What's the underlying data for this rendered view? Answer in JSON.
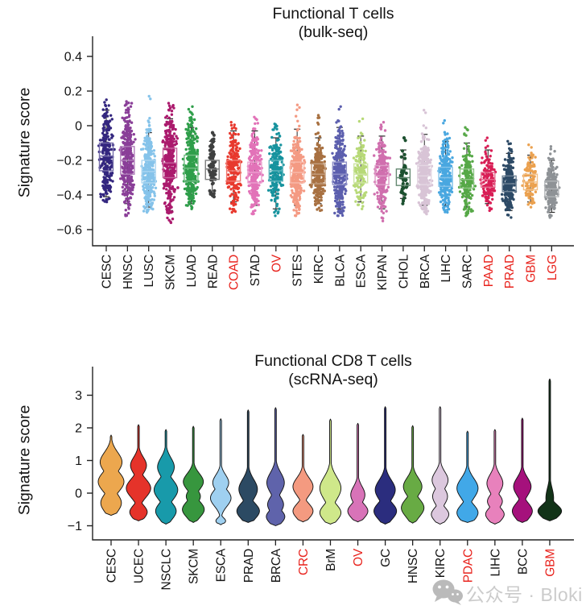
{
  "accents": {
    "highlight_red": "#e8231d",
    "axis_color": "#222222",
    "text_color": "#141414"
  },
  "watermark": {
    "icon": "wechat-icon",
    "text": "公众号 · Bloki",
    "text_color": "#c7c7c7",
    "icon_color": "#b5b5b5"
  },
  "chart_data": [
    {
      "type": "box-strip",
      "title_line1": "Functional T cells",
      "title_line2": "(bulk-seq)",
      "ylabel": "Signature score",
      "yticks": [
        0.4,
        0.2,
        0,
        -0.2,
        -0.4,
        -0.6
      ],
      "ylim": [
        -0.65,
        0.52
      ],
      "legend": "none",
      "categories": [
        {
          "label": "CESC",
          "color": "#33267f",
          "red": false,
          "median": -0.175,
          "q1": -0.26,
          "q3": -0.1,
          "whisker_low": -0.41,
          "whisker_high": 0.09,
          "points_min": -0.44,
          "points_max": 0.15,
          "n": 240
        },
        {
          "label": "HNSC",
          "color": "#8a3f98",
          "red": false,
          "median": -0.2,
          "q1": -0.28,
          "q3": -0.12,
          "whisker_low": -0.45,
          "whisker_high": 0.02,
          "points_min": -0.52,
          "points_max": 0.14,
          "n": 300
        },
        {
          "label": "LUSC",
          "color": "#85c3ea",
          "red": false,
          "median": -0.265,
          "q1": -0.33,
          "q3": -0.2,
          "whisker_low": -0.47,
          "whisker_high": -0.04,
          "points_min": -0.5,
          "points_max": 0.17,
          "n": 300
        },
        {
          "label": "SKCM",
          "color": "#ab1a6d",
          "red": false,
          "median": -0.215,
          "q1": -0.3,
          "q3": -0.13,
          "whisker_low": -0.49,
          "whisker_high": 0.04,
          "points_min": -0.56,
          "points_max": 0.13,
          "n": 320
        },
        {
          "label": "LUAD",
          "color": "#2f9e4a",
          "red": false,
          "median": -0.245,
          "q1": -0.32,
          "q3": -0.17,
          "whisker_low": -0.45,
          "whisker_high": -0.01,
          "points_min": -0.48,
          "points_max": 0.11,
          "n": 300
        },
        {
          "label": "READ",
          "color": "#3f4040",
          "red": false,
          "median": -0.25,
          "q1": -0.31,
          "q3": -0.2,
          "whisker_low": -0.39,
          "whisker_high": -0.09,
          "points_min": -0.41,
          "points_max": -0.04,
          "n": 70
        },
        {
          "label": "COAD",
          "color": "#e8392e",
          "red": true,
          "median": -0.26,
          "q1": -0.32,
          "q3": -0.2,
          "whisker_low": -0.44,
          "whisker_high": -0.03,
          "points_min": -0.5,
          "points_max": 0.02,
          "n": 200
        },
        {
          "label": "STAD",
          "color": "#e273b8",
          "red": false,
          "median": -0.27,
          "q1": -0.33,
          "q3": -0.21,
          "whisker_low": -0.46,
          "whisker_high": -0.03,
          "points_min": -0.51,
          "points_max": 0.05,
          "n": 260
        },
        {
          "label": "OV",
          "color": "#17939e",
          "red": true,
          "median": -0.26,
          "q1": -0.32,
          "q3": -0.2,
          "whisker_low": -0.48,
          "whisker_high": -0.07,
          "points_min": -0.52,
          "points_max": 0.01,
          "n": 200
        },
        {
          "label": "STES",
          "color": "#f49a83",
          "red": false,
          "median": -0.27,
          "q1": -0.33,
          "q3": -0.21,
          "whisker_low": -0.46,
          "whisker_high": -0.02,
          "points_min": -0.52,
          "points_max": 0.12,
          "n": 320
        },
        {
          "label": "KIRC",
          "color": "#a87142",
          "red": false,
          "median": -0.28,
          "q1": -0.335,
          "q3": -0.22,
          "whisker_low": -0.45,
          "whisker_high": -0.07,
          "points_min": -0.49,
          "points_max": 0.06,
          "n": 260
        },
        {
          "label": "BLCA",
          "color": "#5c5fae",
          "red": false,
          "median": -0.28,
          "q1": -0.34,
          "q3": -0.21,
          "whisker_low": -0.48,
          "whisker_high": -0.01,
          "points_min": -0.52,
          "points_max": 0.11,
          "n": 300
        },
        {
          "label": "ESCA",
          "color": "#b7d977",
          "red": false,
          "median": -0.28,
          "q1": -0.33,
          "q3": -0.22,
          "whisker_low": -0.44,
          "whisker_high": -0.06,
          "points_min": -0.48,
          "points_max": 0.04,
          "n": 150
        },
        {
          "label": "KIPAN",
          "color": "#d06fae",
          "red": false,
          "median": -0.29,
          "q1": -0.34,
          "q3": -0.23,
          "whisker_low": -0.48,
          "whisker_high": -0.06,
          "points_min": -0.55,
          "points_max": 0.02,
          "n": 280
        },
        {
          "label": "CHOL",
          "color": "#1d5130",
          "red": false,
          "median": -0.3,
          "q1": -0.345,
          "q3": -0.25,
          "whisker_low": -0.42,
          "whisker_high": -0.14,
          "points_min": -0.45,
          "points_max": -0.07,
          "n": 40
        },
        {
          "label": "BRCA",
          "color": "#d8c4d6",
          "red": false,
          "median": -0.29,
          "q1": -0.34,
          "q3": -0.23,
          "whisker_low": -0.46,
          "whisker_high": -0.05,
          "points_min": -0.51,
          "points_max": 0.09,
          "n": 340
        },
        {
          "label": "LIHC",
          "color": "#49a7e0",
          "red": false,
          "median": -0.3,
          "q1": -0.35,
          "q3": -0.24,
          "whisker_low": -0.46,
          "whisker_high": -0.09,
          "points_min": -0.5,
          "points_max": 0.03,
          "n": 260
        },
        {
          "label": "SARC",
          "color": "#56a847",
          "red": false,
          "median": -0.31,
          "q1": -0.36,
          "q3": -0.25,
          "whisker_low": -0.47,
          "whisker_high": -0.1,
          "points_min": -0.52,
          "points_max": -0.01,
          "n": 180
        },
        {
          "label": "PAAD",
          "color": "#d91f56",
          "red": true,
          "median": -0.31,
          "q1": -0.355,
          "q3": -0.27,
          "whisker_low": -0.45,
          "whisker_high": -0.14,
          "points_min": -0.49,
          "points_max": -0.07,
          "n": 140
        },
        {
          "label": "PRAD",
          "color": "#2d4a66",
          "red": true,
          "median": -0.335,
          "q1": -0.38,
          "q3": -0.29,
          "whisker_low": -0.49,
          "whisker_high": -0.16,
          "points_min": -0.53,
          "points_max": -0.09,
          "n": 220
        },
        {
          "label": "GBM",
          "color": "#eba14f",
          "red": true,
          "median": -0.325,
          "q1": -0.37,
          "q3": -0.28,
          "whisker_low": -0.44,
          "whisker_high": -0.17,
          "points_min": -0.47,
          "points_max": -0.11,
          "n": 120
        },
        {
          "label": "LGG",
          "color": "#8e9296",
          "red": true,
          "median": -0.365,
          "q1": -0.41,
          "q3": -0.32,
          "whisker_low": -0.5,
          "whisker_high": -0.2,
          "points_min": -0.53,
          "points_max": -0.12,
          "n": 220
        }
      ]
    },
    {
      "type": "violin",
      "title_line1": "Functional CD8 T cells",
      "title_line2": "(scRNA-seq)",
      "ylabel": "Signature score",
      "yticks": [
        3,
        2,
        1,
        0,
        -1
      ],
      "ylim": [
        -1.1,
        3.9
      ],
      "legend": "none",
      "categories": [
        {
          "label": "CESC",
          "color": "#eca74e",
          "red": false,
          "top": 1.78,
          "bottom": -0.68,
          "bumps": [
            [
              0.95,
              0.85,
              0.3
            ],
            [
              0.35,
              1.0,
              0.3
            ],
            [
              -0.3,
              0.8,
              0.28
            ]
          ]
        },
        {
          "label": "UCEC",
          "color": "#e5332a",
          "red": false,
          "top": 2.1,
          "bottom": -0.85,
          "bumps": [
            [
              0.85,
              0.62,
              0.25
            ],
            [
              0.15,
              0.95,
              0.28
            ],
            [
              -0.58,
              0.68,
              0.2
            ]
          ]
        },
        {
          "label": "NSCLC",
          "color": "#189aaa",
          "red": false,
          "top": 1.95,
          "bottom": -0.95,
          "bumps": [
            [
              0.8,
              0.65,
              0.28
            ],
            [
              0.1,
              0.92,
              0.3
            ],
            [
              -0.55,
              0.8,
              0.25
            ]
          ]
        },
        {
          "label": "SKCM",
          "color": "#37963e",
          "red": false,
          "top": 2.05,
          "bottom": -0.9,
          "bumps": [
            [
              0.35,
              0.78,
              0.25
            ],
            [
              -0.1,
              0.55,
              0.2
            ],
            [
              -0.5,
              0.85,
              0.24
            ]
          ]
        },
        {
          "label": "ESCA",
          "color": "#9fd0f0",
          "red": false,
          "top": 2.28,
          "bottom": -0.97,
          "bumps": [
            [
              0.32,
              0.62,
              0.24
            ],
            [
              -0.15,
              0.8,
              0.25
            ],
            [
              -0.85,
              0.38,
              0.09
            ]
          ]
        },
        {
          "label": "PRAD",
          "color": "#2c4a63",
          "red": false,
          "top": 2.55,
          "bottom": -0.9,
          "bumps": [
            [
              0.12,
              0.72,
              0.3
            ],
            [
              -0.55,
              0.88,
              0.24
            ]
          ]
        },
        {
          "label": "BRCA",
          "color": "#5f63ab",
          "red": false,
          "top": 2.62,
          "bottom": -1.0,
          "bumps": [
            [
              0.32,
              0.68,
              0.3
            ],
            [
              -0.35,
              0.62,
              0.24
            ],
            [
              -0.72,
              0.72,
              0.2
            ]
          ]
        },
        {
          "label": "CRC",
          "color": "#f49a80",
          "red": true,
          "top": 1.8,
          "bottom": -0.88,
          "bumps": [
            [
              0.2,
              0.78,
              0.27
            ],
            [
              -0.55,
              0.78,
              0.22
            ]
          ]
        },
        {
          "label": "BrM",
          "color": "#cfe88a",
          "red": false,
          "top": 2.27,
          "bottom": -0.95,
          "bumps": [
            [
              0.15,
              0.82,
              0.34
            ],
            [
              -0.6,
              0.82,
              0.24
            ]
          ]
        },
        {
          "label": "OV",
          "color": "#d873b8",
          "red": true,
          "top": 2.14,
          "bottom": -0.88,
          "bumps": [
            [
              -0.05,
              0.55,
              0.25
            ],
            [
              -0.55,
              0.78,
              0.22
            ]
          ]
        },
        {
          "label": "GC",
          "color": "#2b2d7e",
          "red": false,
          "top": 2.65,
          "bottom": -0.95,
          "bumps": [
            [
              0.1,
              0.78,
              0.3
            ],
            [
              -0.55,
              0.88,
              0.25
            ]
          ]
        },
        {
          "label": "HNSC",
          "color": "#68ab44",
          "red": false,
          "top": 2.07,
          "bottom": -0.92,
          "bumps": [
            [
              0.2,
              0.72,
              0.27
            ],
            [
              -0.45,
              0.88,
              0.27
            ]
          ]
        },
        {
          "label": "KIRC",
          "color": "#dcc8de",
          "red": false,
          "top": 2.65,
          "bottom": -0.95,
          "bumps": [
            [
              0.4,
              0.62,
              0.25
            ],
            [
              -0.1,
              0.58,
              0.24
            ],
            [
              -0.65,
              0.68,
              0.2
            ]
          ]
        },
        {
          "label": "PDAC",
          "color": "#41a8e8",
          "red": true,
          "top": 1.9,
          "bottom": -0.9,
          "bumps": [
            [
              0.15,
              0.82,
              0.3
            ],
            [
              -0.6,
              0.82,
              0.24
            ]
          ]
        },
        {
          "label": "LIHC",
          "color": "#e881bc",
          "red": false,
          "top": 1.95,
          "bottom": -0.95,
          "bumps": [
            [
              0.3,
              0.62,
              0.27
            ],
            [
              -0.25,
              0.58,
              0.2
            ],
            [
              -0.65,
              0.72,
              0.2
            ]
          ]
        },
        {
          "label": "BCC",
          "color": "#a5117c",
          "red": false,
          "top": 2.3,
          "bottom": -0.9,
          "bumps": [
            [
              0.2,
              0.68,
              0.27
            ],
            [
              -0.55,
              0.78,
              0.24
            ]
          ]
        },
        {
          "label": "GBM",
          "color": "#123318",
          "red": true,
          "top": 3.5,
          "bottom": -0.85,
          "bumps": [
            [
              -0.55,
              0.92,
              0.2
            ],
            [
              -0.15,
              0.3,
              0.3
            ]
          ]
        }
      ]
    }
  ]
}
